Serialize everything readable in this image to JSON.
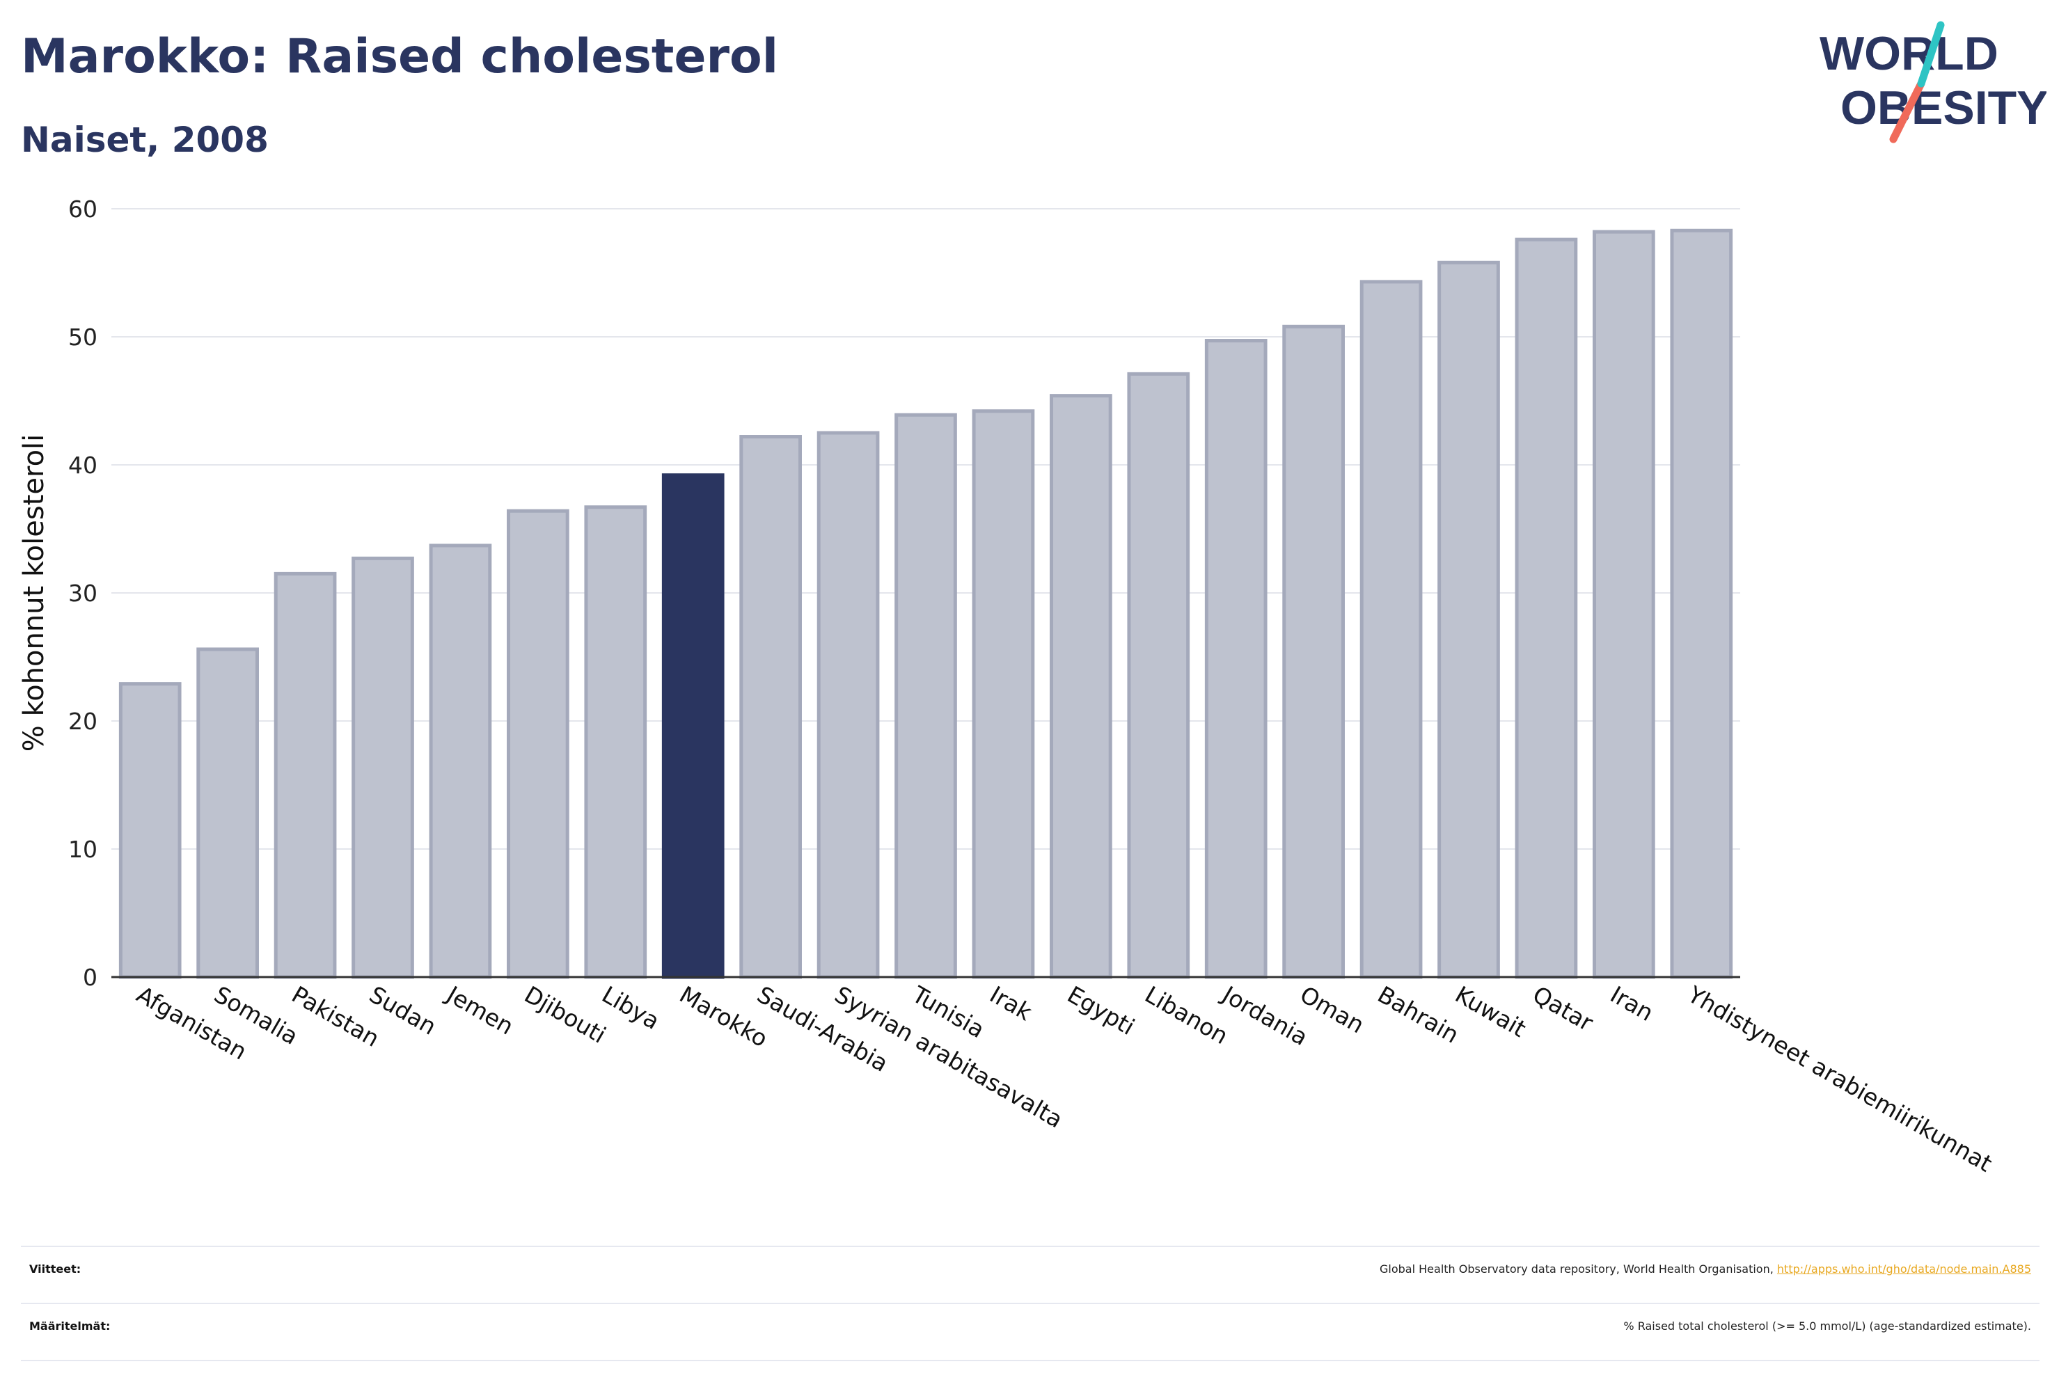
{
  "header": {
    "title": "Marokko: Raised cholesterol",
    "subtitle": "Naiset, 2008"
  },
  "logo": {
    "line1": "WORLD",
    "line2": "OBESITY",
    "icon": "slash-mark-icon",
    "accent_colors": [
      "#2ec4c4",
      "#f06a5a"
    ],
    "text_color": "#2a3560"
  },
  "chart_data": {
    "type": "bar",
    "title": "",
    "xlabel": "",
    "ylabel": "% kohonnut kolesteroli",
    "ylim": [
      0,
      60
    ],
    "yticks": [
      0,
      10,
      20,
      30,
      40,
      50,
      60
    ],
    "grid": true,
    "highlight": "Marokko",
    "colors": {
      "bar": "#bec2cf",
      "bar_border": "#a4a9bb",
      "highlight": "#2a3560"
    },
    "categories": [
      "Afganistan",
      "Somalia",
      "Pakistan",
      "Sudan",
      "Jemen",
      "Djibouti",
      "Libya",
      "Marokko",
      "Saudi-Arabia",
      "Syyrian arabitasavalta",
      "Tunisia",
      "Irak",
      "Egypti",
      "Libanon",
      "Jordania",
      "Oman",
      "Bahrain",
      "Kuwait",
      "Qatar",
      "Iran",
      "Yhdistyneet arabiemiirikunnat"
    ],
    "values": [
      22.9,
      25.6,
      31.5,
      32.7,
      33.7,
      36.4,
      36.7,
      39.2,
      42.2,
      42.5,
      43.9,
      44.2,
      45.4,
      47.1,
      49.7,
      50.8,
      54.3,
      55.8,
      57.6,
      58.2,
      58.3
    ]
  },
  "footer": {
    "sources_label": "Viitteet:",
    "sources_text": "Global Health Observatory data repository, World Health Organisation, ",
    "sources_link": "http://apps.who.int/gho/data/node.main.A885",
    "definitions_label": "Määritelmät:",
    "definitions_text": "% Raised total cholesterol (>= 5.0 mmol/L) (age-standardized estimate)."
  }
}
